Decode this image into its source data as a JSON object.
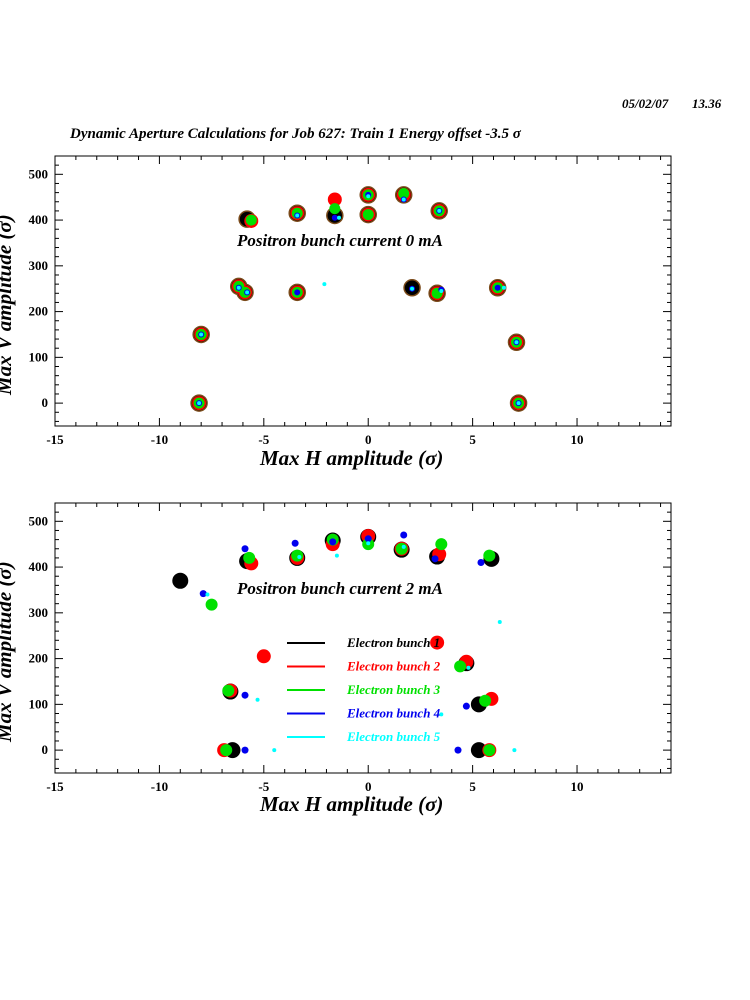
{
  "header": {
    "date": "05/02/07",
    "time": "13.36",
    "title": "Dynamic Aperture Calculations for Job 627:  Train 1   Energy offset  -3.5 σ"
  },
  "colors": {
    "bunch1": "#000000",
    "bunch2": "#ff0000",
    "bunch3": "#00e000",
    "bunch4": "#0000ee",
    "bunch5": "#00ffff",
    "ring": "#7a4a1a"
  },
  "chart_data": [
    {
      "type": "scatter",
      "annotation": "Positron bunch current  0 mA",
      "xlabel": "Max H amplitude (σ)",
      "ylabel": "Max V amplitude (σ)",
      "xlim": [
        -15,
        14.5
      ],
      "ylim": [
        -50,
        540
      ],
      "xticks": [
        -15,
        -10,
        -5,
        0,
        5,
        10
      ],
      "yticks": [
        0,
        100,
        200,
        300,
        400,
        500
      ],
      "grid": false,
      "series": [
        {
          "name": "Electron bunch 1",
          "points": [
            [
              -8.1,
              0
            ],
            [
              -8.0,
              150
            ],
            [
              -6.2,
              255
            ],
            [
              -5.8,
              402
            ],
            [
              -5.9,
              242
            ],
            [
              -3.4,
              415
            ],
            [
              -3.4,
              242
            ],
            [
              -1.6,
              410
            ],
            [
              0,
              455
            ],
            [
              0,
              412
            ],
            [
              1.7,
              455
            ],
            [
              2.1,
              252
            ],
            [
              3.3,
              240
            ],
            [
              3.4,
              420
            ],
            [
              6.2,
              252
            ],
            [
              7.1,
              133
            ],
            [
              7.2,
              0
            ]
          ]
        },
        {
          "name": "Electron bunch 2",
          "points": [
            [
              -8.1,
              0
            ],
            [
              -8.0,
              150
            ],
            [
              -6.2,
              255
            ],
            [
              -5.6,
              398
            ],
            [
              -5.9,
              242
            ],
            [
              -3.4,
              415
            ],
            [
              -3.4,
              242
            ],
            [
              -1.6,
              445
            ],
            [
              0,
              455
            ],
            [
              0,
              412
            ],
            [
              1.7,
              455
            ],
            [
              3.3,
              240
            ],
            [
              3.4,
              420
            ],
            [
              6.2,
              252
            ],
            [
              7.1,
              133
            ],
            [
              7.2,
              0
            ]
          ]
        },
        {
          "name": "Electron bunch 3",
          "points": [
            [
              -8.1,
              0
            ],
            [
              -8.0,
              150
            ],
            [
              -6.2,
              255
            ],
            [
              -5.6,
              400
            ],
            [
              -5.9,
              242
            ],
            [
              -3.4,
              415
            ],
            [
              -3.4,
              242
            ],
            [
              -1.6,
              425
            ],
            [
              0,
              455
            ],
            [
              0,
              412
            ],
            [
              1.7,
              458
            ],
            [
              3.3,
              240
            ],
            [
              3.4,
              420
            ],
            [
              6.2,
              252
            ],
            [
              7.1,
              133
            ],
            [
              7.2,
              0
            ]
          ]
        },
        {
          "name": "Electron bunch 4",
          "points": [
            [
              -8.1,
              0
            ],
            [
              -8.0,
              150
            ],
            [
              -6.2,
              252
            ],
            [
              -5.8,
              242
            ],
            [
              -3.4,
              410
            ],
            [
              -3.4,
              242
            ],
            [
              -1.6,
              405
            ],
            [
              0,
              455
            ],
            [
              1.7,
              445
            ],
            [
              2.1,
              250
            ],
            [
              3.5,
              248
            ],
            [
              3.4,
              420
            ],
            [
              6.2,
              252
            ],
            [
              7.1,
              133
            ],
            [
              7.2,
              0
            ]
          ]
        },
        {
          "name": "Electron bunch 5",
          "points": [
            [
              -8.1,
              0
            ],
            [
              -8.0,
              150
            ],
            [
              -6.2,
              252
            ],
            [
              -5.8,
              242
            ],
            [
              -3.4,
              410
            ],
            [
              -2.1,
              260
            ],
            [
              -1.4,
              405
            ],
            [
              0,
              452
            ],
            [
              1.7,
              445
            ],
            [
              2.1,
              250
            ],
            [
              3.5,
              245
            ],
            [
              3.4,
              420
            ],
            [
              6.5,
              252
            ],
            [
              7.1,
              133
            ],
            [
              7.2,
              0
            ]
          ]
        }
      ]
    },
    {
      "type": "scatter",
      "annotation": "Positron bunch current  2 mA",
      "xlabel": "Max H amplitude (σ)",
      "ylabel": "Max V amplitude (σ)",
      "xlim": [
        -15,
        14.5
      ],
      "ylim": [
        -50,
        540
      ],
      "xticks": [
        -15,
        -10,
        -5,
        0,
        5,
        10
      ],
      "yticks": [
        0,
        100,
        200,
        300,
        400,
        500
      ],
      "grid": false,
      "legend": [
        "Electron bunch 1",
        "Electron bunch 2",
        "Electron bunch 3",
        "Electron bunch 4",
        "Electron bunch 5"
      ],
      "series": [
        {
          "name": "Electron bunch 1",
          "points": [
            [
              -9.0,
              370
            ],
            [
              -6.5,
              0
            ],
            [
              -6.6,
              128
            ],
            [
              -5.8,
              413
            ],
            [
              -3.4,
              420
            ],
            [
              -1.7,
              458
            ],
            [
              0,
              466
            ],
            [
              1.6,
              438
            ],
            [
              3.3,
              423
            ],
            [
              4.7,
              190
            ],
            [
              5.3,
              100
            ],
            [
              5.3,
              0
            ],
            [
              5.9,
              418
            ]
          ]
        },
        {
          "name": "Electron bunch 2",
          "points": [
            [
              -6.9,
              0
            ],
            [
              -6.6,
              130
            ],
            [
              -5.6,
              408
            ],
            [
              -5.0,
              205
            ],
            [
              -3.4,
              420
            ],
            [
              -1.7,
              450
            ],
            [
              0,
              468
            ],
            [
              1.6,
              440
            ],
            [
              3.3,
              235
            ],
            [
              3.4,
              428
            ],
            [
              4.7,
              193
            ],
            [
              5.8,
              0
            ],
            [
              5.9,
              112
            ]
          ]
        },
        {
          "name": "Electron bunch 3",
          "points": [
            [
              -7.5,
              318
            ],
            [
              -6.8,
              0
            ],
            [
              -6.7,
              130
            ],
            [
              -5.7,
              420
            ],
            [
              -3.4,
              425
            ],
            [
              -1.7,
              460
            ],
            [
              0,
              450
            ],
            [
              1.6,
              440
            ],
            [
              3.5,
              450
            ],
            [
              4.4,
              183
            ],
            [
              5.8,
              0
            ],
            [
              5.6,
              108
            ],
            [
              5.8,
              425
            ]
          ]
        },
        {
          "name": "Electron bunch 4",
          "points": [
            [
              -7.9,
              342
            ],
            [
              -5.9,
              0
            ],
            [
              -5.9,
              120
            ],
            [
              -5.9,
              440
            ],
            [
              -3.5,
              452
            ],
            [
              -1.7,
              455
            ],
            [
              0,
              462
            ],
            [
              1.7,
              470
            ],
            [
              3.2,
              418
            ],
            [
              4.3,
              0
            ],
            [
              4.7,
              96
            ],
            [
              5.4,
              410
            ]
          ]
        },
        {
          "name": "Electron bunch 5",
          "points": [
            [
              -7.7,
              340
            ],
            [
              -5.3,
              110
            ],
            [
              -4.5,
              0
            ],
            [
              -3.3,
              422
            ],
            [
              -1.5,
              425
            ],
            [
              0,
              452
            ],
            [
              1.7,
              444
            ],
            [
              3.5,
              78
            ],
            [
              4.8,
              180
            ],
            [
              6.3,
              280
            ],
            [
              7.0,
              0
            ]
          ]
        }
      ]
    }
  ]
}
